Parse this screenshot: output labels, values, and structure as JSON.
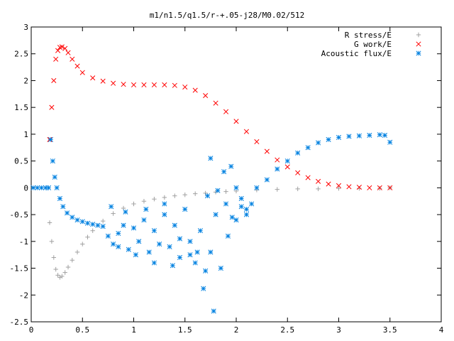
{
  "chart_data": {
    "type": "scatter",
    "title": "m1/n1.5/q1.5/r-+.05-j28/M0.02/512",
    "xlabel": "",
    "ylabel": "",
    "xlim": [
      0,
      4
    ],
    "ylim": [
      -2.5,
      3
    ],
    "x_ticks": [
      0,
      0.5,
      1,
      1.5,
      2,
      2.5,
      3,
      3.5,
      4
    ],
    "x_tick_labels": [
      "0",
      "0.5",
      "1",
      "1.5",
      "2",
      "2.5",
      "3",
      "3.5",
      "4"
    ],
    "y_ticks": [
      -2.5,
      -2,
      -1.5,
      -1,
      -0.5,
      0,
      0.5,
      1,
      1.5,
      2,
      2.5,
      3
    ],
    "y_tick_labels": [
      "-2.5",
      "-2",
      "-1.5",
      "-1",
      "-0.5",
      "0",
      "0.5",
      "1",
      "1.5",
      "2",
      "2.5",
      "3"
    ],
    "grid": false,
    "legend_position": "top-right",
    "series": [
      {
        "name": "R stress/E",
        "marker": "plus",
        "color": "#a0a0a0",
        "x": [
          0.18,
          0.2,
          0.22,
          0.24,
          0.26,
          0.28,
          0.3,
          0.33,
          0.36,
          0.4,
          0.45,
          0.5,
          0.55,
          0.6,
          0.7,
          0.8,
          0.9,
          1.0,
          1.1,
          1.2,
          1.3,
          1.4,
          1.5,
          1.6,
          1.7,
          1.8,
          1.9,
          2.0,
          2.2,
          2.4,
          2.6,
          2.8,
          3.0,
          3.2,
          3.4,
          3.5
        ],
        "y": [
          -0.65,
          -1.0,
          -1.3,
          -1.52,
          -1.63,
          -1.67,
          -1.65,
          -1.58,
          -1.48,
          -1.35,
          -1.2,
          -1.05,
          -0.92,
          -0.8,
          -0.62,
          -0.48,
          -0.38,
          -0.3,
          -0.25,
          -0.21,
          -0.18,
          -0.15,
          -0.13,
          -0.11,
          -0.1,
          -0.08,
          -0.07,
          -0.06,
          -0.04,
          -0.03,
          -0.02,
          -0.02,
          -0.01,
          -0.01,
          -0.01,
          0.0
        ]
      },
      {
        "name": "G work/E",
        "marker": "cross",
        "color": "#ff0000",
        "x": [
          0.18,
          0.2,
          0.22,
          0.24,
          0.26,
          0.28,
          0.3,
          0.33,
          0.36,
          0.4,
          0.45,
          0.5,
          0.6,
          0.7,
          0.8,
          0.9,
          1.0,
          1.1,
          1.2,
          1.3,
          1.4,
          1.5,
          1.6,
          1.7,
          1.8,
          1.9,
          2.0,
          2.1,
          2.2,
          2.3,
          2.4,
          2.5,
          2.6,
          2.7,
          2.8,
          2.9,
          3.0,
          3.1,
          3.2,
          3.3,
          3.4,
          3.5
        ],
        "y": [
          0.9,
          1.5,
          2.0,
          2.4,
          2.56,
          2.62,
          2.63,
          2.6,
          2.52,
          2.4,
          2.27,
          2.15,
          2.05,
          1.99,
          1.95,
          1.93,
          1.92,
          1.92,
          1.92,
          1.92,
          1.91,
          1.88,
          1.82,
          1.72,
          1.58,
          1.42,
          1.24,
          1.05,
          0.86,
          0.68,
          0.52,
          0.39,
          0.28,
          0.19,
          0.12,
          0.07,
          0.04,
          0.02,
          0.01,
          0.0,
          0.0,
          0.0
        ]
      },
      {
        "name": "Acoustic flux/E",
        "marker": "star",
        "color": "#0080e0",
        "x": [
          0.02,
          0.06,
          0.1,
          0.14,
          0.17,
          0.19,
          0.21,
          0.23,
          0.25,
          0.28,
          0.31,
          0.35,
          0.4,
          0.45,
          0.5,
          0.55,
          0.6,
          0.65,
          0.7,
          0.75,
          0.8,
          0.85,
          0.9,
          0.95,
          1.0,
          1.05,
          1.1,
          1.15,
          1.2,
          1.25,
          1.3,
          1.35,
          1.4,
          1.45,
          1.5,
          1.55,
          1.6,
          1.65,
          1.7,
          1.75,
          1.8,
          1.85,
          1.9,
          1.95,
          2.0,
          2.05,
          2.1,
          2.15,
          2.2,
          2.3,
          2.4,
          2.5,
          2.6,
          2.7,
          2.8,
          2.9,
          3.0,
          3.1,
          3.2,
          3.3,
          3.4,
          3.45,
          3.5,
          0.78,
          0.85,
          0.92,
          1.02,
          1.12,
          1.2,
          1.3,
          1.38,
          1.45,
          1.55,
          1.62,
          1.68,
          1.72,
          1.75,
          1.78,
          1.82,
          1.88,
          1.92,
          1.96,
          2.0,
          2.05,
          2.1
        ],
        "y": [
          0.0,
          0.0,
          0.0,
          0.0,
          0.0,
          0.9,
          0.5,
          0.2,
          0.0,
          -0.2,
          -0.35,
          -0.47,
          -0.55,
          -0.6,
          -0.63,
          -0.66,
          -0.68,
          -0.7,
          -0.72,
          -0.9,
          -1.05,
          -0.85,
          -0.7,
          -1.15,
          -0.75,
          -1.0,
          -0.6,
          -1.2,
          -0.8,
          -1.05,
          -0.5,
          -1.1,
          -0.7,
          -1.3,
          -0.4,
          -1.0,
          -1.4,
          -0.8,
          -1.55,
          -1.2,
          -0.5,
          -1.5,
          -0.3,
          0.4,
          -0.6,
          -0.2,
          -0.5,
          -0.3,
          0.0,
          0.15,
          0.35,
          0.5,
          0.65,
          0.75,
          0.84,
          0.9,
          0.94,
          0.96,
          0.97,
          0.98,
          0.99,
          0.98,
          0.85,
          -0.35,
          -1.1,
          -0.45,
          -1.25,
          -0.4,
          -1.4,
          -0.3,
          -1.45,
          -0.95,
          -1.25,
          -1.2,
          -1.88,
          -0.15,
          0.55,
          -2.3,
          -0.05,
          0.3,
          -0.9,
          -0.55,
          0.0,
          -0.35,
          -0.4
        ]
      }
    ]
  }
}
